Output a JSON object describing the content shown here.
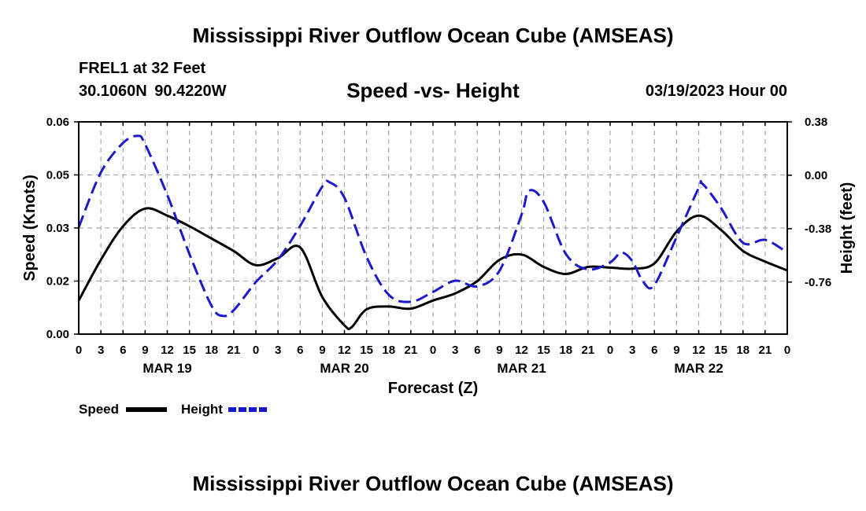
{
  "title": "Mississippi River Outflow Ocean Cube (AMSEAS)",
  "footer_title": "Mississippi River Outflow Ocean Cube (AMSEAS)",
  "station": "FREL1 at 32 Feet",
  "coords": "30.1060N  90.4220W",
  "subtitle": "Speed -vs- Height",
  "datetime": "03/19/2023 Hour 00",
  "colors": {
    "speed": "#000000",
    "height": "#1a1acc",
    "grid": "#aaaaaa"
  },
  "chart_data": {
    "type": "line",
    "title": "Speed -vs- Height",
    "xlabel": "Forecast (Z)",
    "ylabel": "Speed (Knots)",
    "ylabel_right": "Height (feet)",
    "x_range_hours": [
      0,
      96
    ],
    "ylim": [
      0,
      0.06
    ],
    "ylim_right": [
      -1.13,
      0.38
    ],
    "yticks": [
      0,
      0.015,
      0.03,
      0.045,
      0.06
    ],
    "ytick_labels": [
      "0.00",
      "0.02",
      "0.03",
      "0.05",
      "0.06"
    ],
    "yticks_right": [
      -0.76,
      -0.38,
      0.0,
      0.38
    ],
    "ytick_right_labels": [
      "-0.76",
      "-0.38",
      "0.00",
      "0.38"
    ],
    "xtick_step_hours": 3,
    "xtick_labels": [
      "0",
      "3",
      "6",
      "9",
      "12",
      "15",
      "18",
      "21",
      "0",
      "3",
      "6",
      "9",
      "12",
      "15",
      "18",
      "21",
      "0",
      "3",
      "6",
      "9",
      "12",
      "15",
      "18",
      "21",
      "0",
      "3",
      "6",
      "9",
      "12",
      "15",
      "18",
      "21",
      "0"
    ],
    "date_labels": [
      {
        "hour": 12,
        "label": "MAR 19"
      },
      {
        "hour": 36,
        "label": "MAR 20"
      },
      {
        "hour": 60,
        "label": "MAR 21"
      },
      {
        "hour": 84,
        "label": "MAR 22"
      }
    ],
    "grid": true,
    "legend": "bottom-left",
    "series": [
      {
        "name": "Speed",
        "axis": "left",
        "style": "solid",
        "x": [
          0,
          3,
          6,
          9,
          12,
          15,
          18,
          21,
          24,
          27,
          30,
          33,
          36,
          37,
          39,
          42,
          45,
          48,
          51,
          54,
          57,
          60,
          63,
          66,
          69,
          72,
          75,
          78,
          81,
          84,
          87,
          90,
          93,
          96
        ],
        "values": [
          0.0095,
          0.021,
          0.0305,
          0.0355,
          0.0335,
          0.0305,
          0.027,
          0.0235,
          0.0195,
          0.0215,
          0.0245,
          0.0105,
          0.0025,
          0.002,
          0.007,
          0.0078,
          0.0072,
          0.0095,
          0.0115,
          0.015,
          0.021,
          0.0225,
          0.019,
          0.017,
          0.019,
          0.0188,
          0.0185,
          0.02,
          0.029,
          0.0335,
          0.0295,
          0.0235,
          0.0205,
          0.018
        ]
      },
      {
        "name": "Height",
        "axis": "right",
        "style": "dashed",
        "x": [
          0,
          3,
          6,
          8,
          9,
          12,
          15,
          18,
          19.5,
          21,
          24,
          27,
          30,
          33,
          34,
          36,
          39,
          42,
          45,
          48,
          51,
          54,
          57,
          60,
          61,
          63,
          66,
          69,
          72,
          73.5,
          75,
          76.5,
          78,
          81,
          84,
          84.5,
          87,
          90,
          93,
          96
        ],
        "values": [
          -0.37,
          0.02,
          0.23,
          0.28,
          0.22,
          -0.14,
          -0.56,
          -0.93,
          -1.0,
          -0.96,
          -0.76,
          -0.6,
          -0.36,
          -0.08,
          -0.05,
          -0.16,
          -0.58,
          -0.85,
          -0.9,
          -0.83,
          -0.75,
          -0.79,
          -0.68,
          -0.28,
          -0.11,
          -0.19,
          -0.56,
          -0.67,
          -0.62,
          -0.55,
          -0.61,
          -0.76,
          -0.78,
          -0.44,
          -0.09,
          -0.06,
          -0.23,
          -0.48,
          -0.46,
          -0.55
        ]
      }
    ]
  }
}
